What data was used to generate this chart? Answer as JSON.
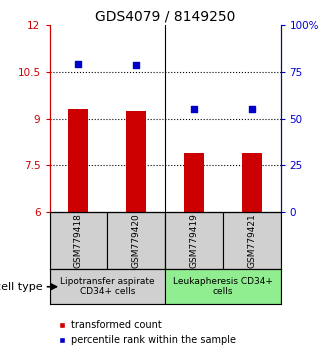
{
  "title": "GDS4079 / 8149250",
  "samples": [
    "GSM779418",
    "GSM779420",
    "GSM779419",
    "GSM779421"
  ],
  "bar_values": [
    9.3,
    9.25,
    7.9,
    7.9
  ],
  "dot_values": [
    10.75,
    10.7,
    9.3,
    9.3
  ],
  "bar_color": "#cc0000",
  "dot_color": "#0000cc",
  "ylim_left": [
    6,
    12
  ],
  "ylim_right": [
    0,
    100
  ],
  "yticks_left": [
    6,
    7.5,
    9,
    10.5,
    12
  ],
  "ytick_labels_left": [
    "6",
    "7.5",
    "9",
    "10.5",
    "12"
  ],
  "yticks_right": [
    0,
    25,
    50,
    75,
    100
  ],
  "ytick_labels_right": [
    "0",
    "25",
    "50",
    "75",
    "100%"
  ],
  "hlines": [
    7.5,
    9.0,
    10.5
  ],
  "group1_label": "Lipotransfer aspirate\nCD34+ cells",
  "group2_label": "Leukapheresis CD34+\ncells",
  "group1_color": "#d0d0d0",
  "group2_color": "#90ee90",
  "cell_type_label": "cell type",
  "legend_bar_label": "transformed count",
  "legend_dot_label": "percentile rank within the sample",
  "title_fontsize": 10,
  "axis_fontsize": 7.5,
  "sample_fontsize": 6.5,
  "group_fontsize": 6.5,
  "legend_fontsize": 7,
  "bar_width": 0.35
}
